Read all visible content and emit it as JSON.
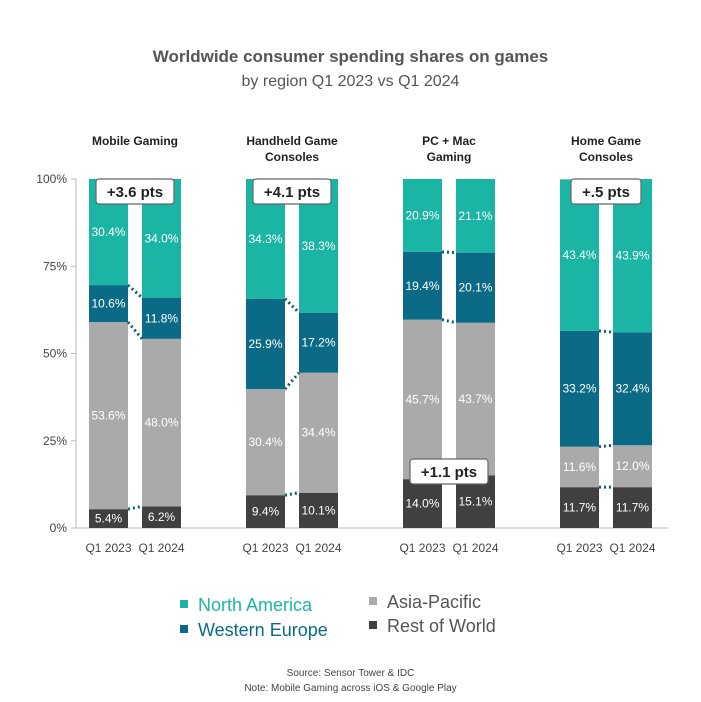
{
  "header": {
    "title": "Worldwide consumer spending shares on games",
    "subtitle": "by region Q1 2023 vs Q1 2024"
  },
  "legend": {
    "items": [
      {
        "label": "North America",
        "color": "#1ab5a4",
        "text_color": "#1ab5a4"
      },
      {
        "label": "Western Europe",
        "color": "#0b6b86",
        "text_color": "#0b6b86"
      },
      {
        "label": "Asia-Pacific",
        "color": "#aaaaaa",
        "text_color": "#555555"
      },
      {
        "label": "Rest of World",
        "color": "#404040",
        "text_color": "#555555"
      }
    ]
  },
  "footer": {
    "source": "Source: Sensor Tower & IDC",
    "note": "Note: Mobile Gaming across iOS & Google Play"
  },
  "chart_data": {
    "type": "bar",
    "stacked": true,
    "ylim": [
      0,
      100
    ],
    "yticks": [
      "0%",
      "25%",
      "50%",
      "75%",
      "100%"
    ],
    "stack_order": [
      "Rest of World",
      "Asia-Pacific",
      "Western Europe",
      "North America"
    ],
    "colors": {
      "North America": "#1ab5a4",
      "Western Europe": "#0b6b86",
      "Asia-Pacific": "#aaaaaa",
      "Rest of World": "#404040"
    },
    "groups": [
      {
        "title": [
          "Mobile Gaming"
        ],
        "callout": {
          "text": "+3.6 pts",
          "position": "top"
        },
        "bars": [
          {
            "label": "Q1 2023",
            "values": {
              "Rest of World": 5.4,
              "Asia-Pacific": 53.6,
              "Western Europe": 10.6,
              "North America": 30.4
            },
            "labels": {
              "Rest of World": "5.4%",
              "Asia-Pacific": "53.6%",
              "Western Europe": "10.6%",
              "North America": "30.4%"
            }
          },
          {
            "label": "Q1 2024",
            "values": {
              "Rest of World": 6.2,
              "Asia-Pacific": 48.0,
              "Western Europe": 11.8,
              "North America": 34.0
            },
            "labels": {
              "Rest of World": "6.2%",
              "Asia-Pacific": "48.0%",
              "Western Europe": "11.8%",
              "North America": "34.0%"
            }
          }
        ]
      },
      {
        "title": [
          "Handheld Game",
          "Consoles"
        ],
        "callout": {
          "text": "+4.1 pts",
          "position": "top"
        },
        "bars": [
          {
            "label": "Q1 2023",
            "values": {
              "Rest of World": 9.4,
              "Asia-Pacific": 30.4,
              "Western Europe": 25.9,
              "North America": 34.3
            },
            "labels": {
              "Rest of World": "9.4%",
              "Asia-Pacific": "30.4%",
              "Western Europe": "25.9%",
              "North America": "34.3%"
            }
          },
          {
            "label": "Q1 2024",
            "values": {
              "Rest of World": 10.1,
              "Asia-Pacific": 34.4,
              "Western Europe": 17.2,
              "North America": 38.3
            },
            "labels": {
              "Rest of World": "10.1%",
              "Asia-Pacific": "34.4%",
              "Western Europe": "17.2%",
              "North America": "38.3%"
            }
          }
        ]
      },
      {
        "title": [
          "PC + Mac",
          "Gaming"
        ],
        "callout": {
          "text": "+1.1 pts",
          "position": "bottom"
        },
        "bars": [
          {
            "label": "Q1 2023",
            "values": {
              "Rest of World": 14.0,
              "Asia-Pacific": 45.7,
              "Western Europe": 19.4,
              "North America": 20.9
            },
            "labels": {
              "Rest of World": "14.0%",
              "Asia-Pacific": "45.7%",
              "Western Europe": "19.4%",
              "North America": "20.9%"
            }
          },
          {
            "label": "Q1 2024",
            "values": {
              "Rest of World": 15.1,
              "Asia-Pacific": 43.7,
              "Western Europe": 20.1,
              "North America": 21.1
            },
            "labels": {
              "Rest of World": "15.1%",
              "Asia-Pacific": "43.7%",
              "Western Europe": "20.1%",
              "North America": "21.1%"
            }
          }
        ]
      },
      {
        "title": [
          "Home Game",
          "Consoles"
        ],
        "callout": {
          "text": "+.5 pts",
          "position": "top"
        },
        "bars": [
          {
            "label": "Q1 2023",
            "values": {
              "Rest of World": 11.7,
              "Asia-Pacific": 11.6,
              "Western Europe": 33.2,
              "North America": 43.4
            },
            "labels": {
              "Rest of World": "11.7%",
              "Asia-Pacific": "11.6%",
              "Western Europe": "33.2%",
              "North America": "43.4%"
            }
          },
          {
            "label": "Q1 2024",
            "values": {
              "Rest of World": 11.7,
              "Asia-Pacific": 12.0,
              "Western Europe": 32.4,
              "North America": 43.9
            },
            "labels": {
              "Rest of World": "11.7%",
              "Asia-Pacific": "12.0%",
              "Western Europe": "32.4%",
              "North America": "43.9%"
            }
          }
        ]
      }
    ]
  }
}
